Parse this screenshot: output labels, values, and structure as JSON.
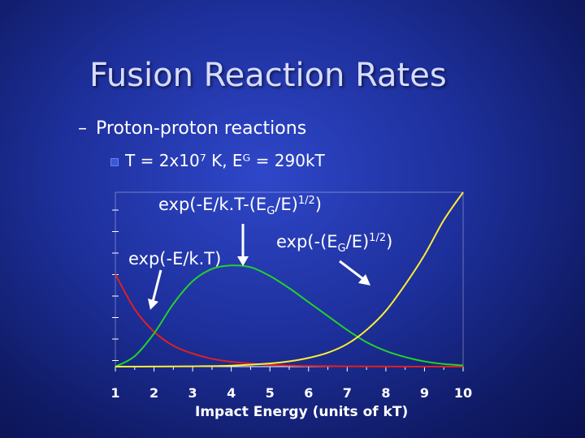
{
  "slide": {
    "title": "Fusion Reaction Rates",
    "bullet1_dash": "–",
    "bullet1": "Proton-proton reactions",
    "bullet2": "T = 2x10⁷ K, Eᴳ = 290kT"
  },
  "chart_data": {
    "type": "line",
    "xlabel": "Impact Energy (units of kT)",
    "ylabel": "",
    "xlim": [
      1,
      10
    ],
    "ylim": [
      0,
      1
    ],
    "x_ticks": [
      "1",
      "2",
      "3",
      "4",
      "5",
      "6",
      "7",
      "8",
      "9",
      "10"
    ],
    "series": [
      {
        "name": "exp(-E/kT)",
        "color": "#e02020",
        "x": [
          1,
          1.5,
          2,
          2.5,
          3,
          3.5,
          4,
          5,
          6,
          7,
          8,
          9,
          10
        ],
        "y": [
          0.53,
          0.33,
          0.2,
          0.12,
          0.075,
          0.045,
          0.028,
          0.01,
          0.004,
          0.0015,
          0.0005,
          0.0002,
          0.0001
        ]
      },
      {
        "name": "exp(-E/kT-(E_G/E)^1/2)",
        "color": "#22d22a",
        "x": [
          1,
          1.5,
          2,
          2.5,
          3,
          3.5,
          4,
          4.5,
          5,
          5.5,
          6,
          6.5,
          7,
          7.5,
          8,
          8.5,
          9,
          9.5,
          10
        ],
        "y": [
          0.0,
          0.06,
          0.19,
          0.36,
          0.49,
          0.56,
          0.58,
          0.57,
          0.52,
          0.45,
          0.37,
          0.29,
          0.21,
          0.14,
          0.09,
          0.055,
          0.03,
          0.015,
          0.007
        ]
      },
      {
        "name": "exp(-(E_G/E)^1/2)",
        "color": "#ffee33",
        "x": [
          1,
          2,
          3,
          4,
          5,
          5.5,
          6,
          6.5,
          7,
          7.5,
          8,
          8.5,
          9,
          9.5,
          10
        ],
        "y": [
          0.0,
          0.0005,
          0.002,
          0.006,
          0.018,
          0.03,
          0.05,
          0.08,
          0.13,
          0.21,
          0.32,
          0.47,
          0.64,
          0.84,
          1.0
        ]
      }
    ],
    "labels": {
      "green": "exp(-E/k.T-(E",
      "green_sub": "G",
      "green_tail": "/E)",
      "green_sup": "1/2",
      "green_close": ")",
      "red": "exp(-E/k.T)",
      "yellow": "exp(-(E",
      "yellow_sub": "G",
      "yellow_tail": "/E)",
      "yellow_sup": "1/2",
      "yellow_close": ")"
    },
    "grid": false
  }
}
